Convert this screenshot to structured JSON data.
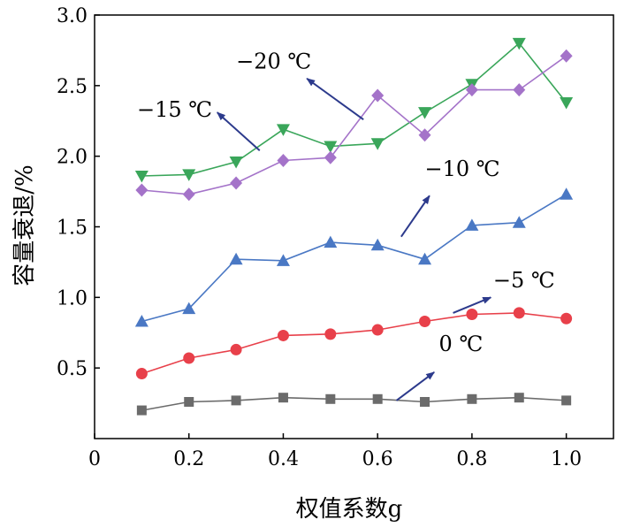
{
  "chart_data": {
    "type": "line",
    "xlabel": "权值系数g",
    "ylabel": "容量衰退/%",
    "xlim": [
      0,
      1.1
    ],
    "ylim": [
      0,
      3.0
    ],
    "x_ticks": [
      "0",
      "0.2",
      "0.4",
      "0.6",
      "0.8",
      "1.0"
    ],
    "y_ticks": [
      "0.5",
      "1.0",
      "1.5",
      "2.0",
      "2.5",
      "3.0"
    ],
    "grid": false,
    "x": [
      0.1,
      0.2,
      0.3,
      0.4,
      0.5,
      0.6,
      0.7,
      0.8,
      0.9,
      1.0
    ],
    "series": [
      {
        "name": "0 ℃",
        "marker": "square",
        "color": "#6b6b6b",
        "values": [
          0.2,
          0.26,
          0.27,
          0.29,
          0.28,
          0.28,
          0.26,
          0.28,
          0.29,
          0.27
        ]
      },
      {
        "name": "−5 ℃",
        "marker": "circle",
        "color": "#e8404a",
        "values": [
          0.46,
          0.57,
          0.63,
          0.73,
          0.74,
          0.77,
          0.83,
          0.88,
          0.89,
          0.85
        ]
      },
      {
        "name": "−10 ℃",
        "marker": "triangle-up",
        "color": "#4a78c4",
        "values": [
          0.83,
          0.92,
          1.27,
          1.26,
          1.39,
          1.37,
          1.27,
          1.51,
          1.53,
          1.73
        ]
      },
      {
        "name": "−15 ℃",
        "marker": "triangle-down",
        "color": "#3aa65a",
        "values": [
          1.86,
          1.87,
          1.96,
          2.19,
          2.07,
          2.09,
          2.31,
          2.51,
          2.8,
          2.38
        ]
      },
      {
        "name": "−20 ℃",
        "marker": "diamond",
        "color": "#a473c9",
        "values": [
          1.76,
          1.73,
          1.81,
          1.97,
          1.99,
          2.43,
          2.15,
          2.47,
          2.47,
          2.71
        ]
      }
    ],
    "annotations": [
      {
        "series": 0,
        "text": "0 ℃",
        "text_at": [
          0.73,
          0.62
        ],
        "arrow_from": [
          0.64,
          0.27
        ],
        "arrow_to": [
          0.72,
          0.47
        ]
      },
      {
        "series": 1,
        "text": "−5 ℃",
        "text_at": [
          0.845,
          1.07
        ],
        "arrow_from": [
          0.76,
          0.89
        ],
        "arrow_to": [
          0.84,
          1.0
        ]
      },
      {
        "series": 2,
        "text": "−10 ℃",
        "text_at": [
          0.7,
          1.86
        ],
        "arrow_from": [
          0.65,
          1.43
        ],
        "arrow_to": [
          0.71,
          1.72
        ]
      },
      {
        "series": 3,
        "text": "−15 ℃",
        "text_at": [
          0.09,
          2.28
        ],
        "arrow_from": [
          0.35,
          2.04
        ],
        "arrow_to": [
          0.26,
          2.31
        ]
      },
      {
        "series": 4,
        "text": "−20 ℃",
        "text_at": [
          0.3,
          2.62
        ],
        "arrow_from": [
          0.57,
          2.26
        ],
        "arrow_to": [
          0.45,
          2.55
        ]
      }
    ],
    "axis_color": "#000000",
    "annotation_arrow_color": "#2c3a8c"
  }
}
